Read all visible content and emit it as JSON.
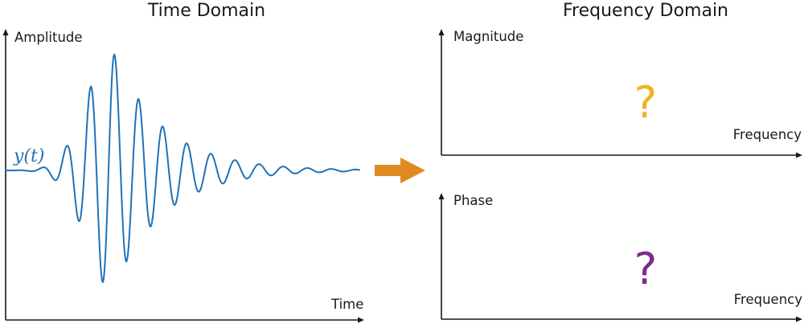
{
  "time_domain": {
    "title": "Time Domain",
    "y_axis_label": "Amplitude",
    "x_axis_label": "Time",
    "signal_label": "y(t)",
    "signal_color": "#1f72b8"
  },
  "frequency_domain": {
    "title": "Frequency Domain",
    "magnitude_plot": {
      "y_axis_label": "Magnitude",
      "x_axis_label": "Frequency",
      "placeholder": "?",
      "placeholder_color": "#f0b323"
    },
    "phase_plot": {
      "y_axis_label": "Phase",
      "x_axis_label": "Frequency",
      "placeholder": "?",
      "placeholder_color": "#7b2c8c"
    }
  },
  "transform_arrow_color": "#e08a22"
}
